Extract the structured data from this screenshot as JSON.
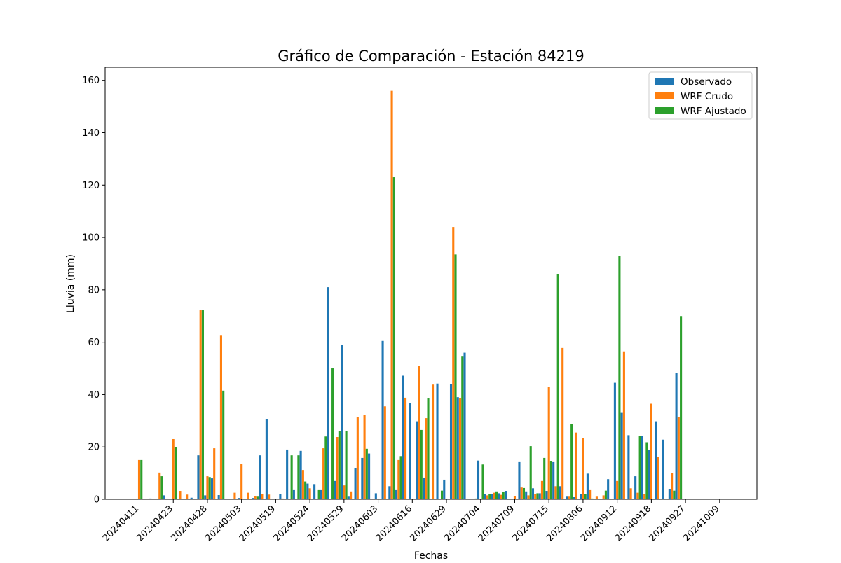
{
  "chart_data": {
    "type": "bar",
    "title": "Gráfico de Comparación - Estación 84219",
    "xlabel": "Fechas",
    "ylabel": "Lluvia (mm)",
    "ylim": [
      0,
      165
    ],
    "yticks": [
      0,
      20,
      40,
      60,
      80,
      100,
      120,
      140,
      160
    ],
    "tick_labels": [
      "20240411",
      "20240423",
      "20240428",
      "20240503",
      "20240519",
      "20240524",
      "20240529",
      "20240603",
      "20240616",
      "20240629",
      "20240704",
      "20240709",
      "20240715",
      "20240806",
      "20240912",
      "20240918",
      "20240927",
      "20241009"
    ],
    "legend_position": "top-right",
    "grid": false,
    "series": [
      {
        "name": "Observado",
        "color": "#1f77b4",
        "values": [
          0,
          0,
          0.3,
          0.2,
          1.5,
          0,
          0,
          0,
          0.6,
          16.8,
          1.5,
          8,
          1.6,
          0.2,
          0,
          0.5,
          0,
          0.5,
          16.8,
          30.5,
          0,
          2,
          19,
          3.5,
          18.5,
          6,
          5.8,
          3.5,
          81,
          7,
          59,
          1,
          12,
          15.8,
          17.5,
          2.3,
          60.5,
          5,
          3.5,
          47.2,
          36.8,
          29.8,
          8.3,
          0,
          44.2,
          7.5,
          44,
          39,
          56,
          0,
          14.8,
          2,
          2,
          2.3,
          3.2,
          0,
          14.2,
          3,
          4.2,
          2.3,
          3.2,
          14.2,
          5,
          1,
          0.8,
          2,
          9.8,
          0,
          0,
          7.7,
          44.5,
          33,
          24.5,
          8.8,
          24.3,
          18.8,
          29.8,
          22.8,
          3.8,
          48.2
        ]
      },
      {
        "name": "WRF Crudo",
        "color": "#ff7f0e",
        "values": [
          15,
          0,
          0,
          10.2,
          0,
          23,
          3.2,
          1.8,
          0,
          72.2,
          8.8,
          19.5,
          62.5,
          0,
          2.5,
          13.5,
          2.5,
          1.2,
          2,
          1.8,
          0,
          0.3,
          0,
          0,
          11.2,
          4.2,
          0,
          19.5,
          0,
          23.8,
          5.3,
          3,
          31.5,
          32.2,
          0,
          0,
          35.5,
          156,
          15,
          38.8,
          0,
          51,
          31,
          43.8,
          0,
          0,
          104,
          38.5,
          0,
          0,
          0,
          1.5,
          2.5,
          1.7,
          0,
          1.3,
          4.5,
          1.5,
          2,
          7,
          43,
          5,
          57.8,
          1,
          25.5,
          23.3,
          3.5,
          1,
          1.5,
          0,
          7,
          56.5,
          4.2,
          2.5,
          2,
          36.5,
          16.3,
          0,
          10,
          31.5
        ]
      },
      {
        "name": "WRF Ajustado",
        "color": "#2ca02c",
        "values": [
          15,
          0,
          0,
          8.8,
          0,
          19.8,
          0,
          0,
          0,
          72.2,
          8.5,
          0,
          41.5,
          0,
          0,
          0,
          0,
          1,
          0,
          0,
          0,
          0,
          16.8,
          16.8,
          6.8,
          0,
          3.5,
          24,
          50,
          26,
          26,
          0,
          0,
          19.3,
          0,
          0,
          0,
          123,
          16.5,
          0,
          0,
          26.5,
          38.5,
          0,
          3.3,
          0,
          93.5,
          54.5,
          0,
          0.3,
          13.3,
          2,
          3,
          2.8,
          0,
          0,
          4.3,
          20.3,
          2.3,
          15.8,
          14.5,
          86,
          0,
          28.8,
          0,
          2,
          0.3,
          0,
          3.3,
          0,
          93,
          0,
          0,
          24.3,
          21.8,
          0,
          0,
          0,
          3.3,
          70
        ]
      }
    ]
  }
}
